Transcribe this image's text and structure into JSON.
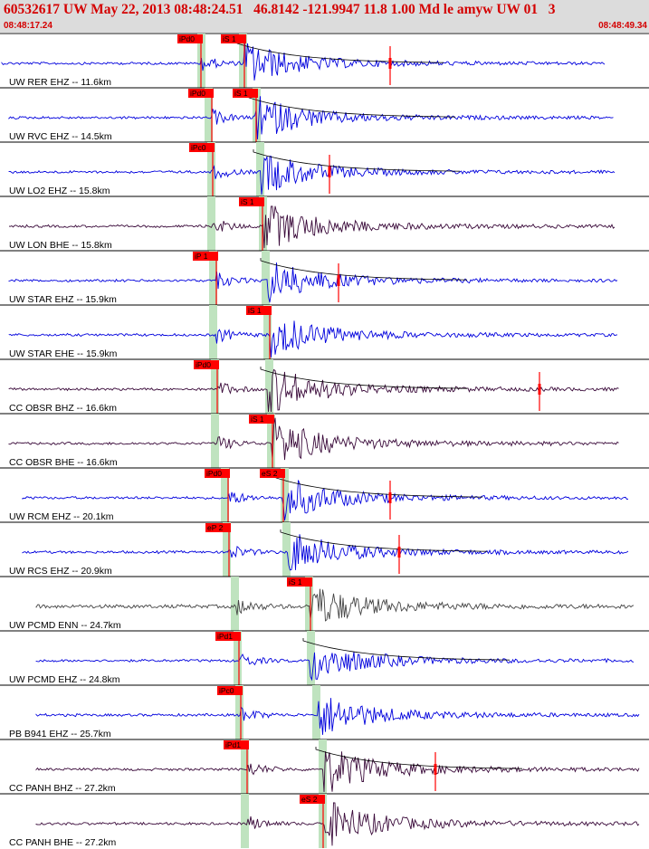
{
  "header": {
    "title": "60532617 UW May 22, 2013 08:48:24.51   46.8142 -121.9947 11.8 1.00 Md le amyw UW 01   3",
    "time_start": "08:48:17.24",
    "time_end": "08:48:49.34"
  },
  "colors": {
    "blue": "#0000dd",
    "dark": "#3a0a3a",
    "gray": "#444444",
    "green": "#bfe3bf",
    "red": "#ff0000"
  },
  "traces": [
    {
      "label": "UW RER EHZ -- 11.6km",
      "color": "blue",
      "p_pick": "iPd0",
      "s_pick": "iS 1",
      "coda": true,
      "red_mark": true
    },
    {
      "label": "UW RVC EHZ -- 14.5km",
      "color": "blue",
      "p_pick": "iPd0",
      "s_pick": "iS 1",
      "coda": true,
      "red_mark": false
    },
    {
      "label": "UW LO2 EHZ -- 15.8km",
      "color": "blue",
      "p_pick": "iPc0",
      "s_pick": "",
      "coda": true,
      "red_mark": true
    },
    {
      "label": "UW LON BHE -- 15.8km",
      "color": "dark",
      "p_pick": "",
      "s_pick": "iS 1",
      "coda": false,
      "red_mark": false
    },
    {
      "label": "UW STAR EHZ -- 15.9km",
      "color": "blue",
      "p_pick": "iP 1",
      "s_pick": "",
      "coda": true,
      "red_mark": true
    },
    {
      "label": "UW STAR EHE -- 15.9km",
      "color": "blue",
      "p_pick": "",
      "s_pick": "iS 1",
      "coda": false,
      "red_mark": false
    },
    {
      "label": "CC OBSR BHZ -- 16.6km",
      "color": "dark",
      "p_pick": "iPd0",
      "s_pick": "",
      "coda": true,
      "red_mark": true
    },
    {
      "label": "CC OBSR BHE -- 16.6km",
      "color": "dark",
      "p_pick": "",
      "s_pick": "iS 1",
      "coda": false,
      "red_mark": false
    },
    {
      "label": "UW RCM EHZ -- 20.1km",
      "color": "blue",
      "p_pick": "iPd0",
      "s_pick": "eS 2",
      "coda": true,
      "red_mark": true
    },
    {
      "label": "UW RCS EHZ -- 20.9km",
      "color": "blue",
      "p_pick": "eP 2",
      "s_pick": "",
      "coda": true,
      "red_mark": true
    },
    {
      "label": "UW PCMD ENN -- 24.7km",
      "color": "gray",
      "p_pick": "",
      "s_pick": "iS 1",
      "coda": false,
      "red_mark": false
    },
    {
      "label": "UW PCMD EHZ -- 24.8km",
      "color": "blue",
      "p_pick": "iPd1",
      "s_pick": "",
      "coda": true,
      "red_mark": false
    },
    {
      "label": "PB B941 EHZ -- 25.7km",
      "color": "blue",
      "p_pick": "iPc0",
      "s_pick": "",
      "coda": false,
      "red_mark": false
    },
    {
      "label": "CC PANH BHZ -- 27.2km",
      "color": "dark",
      "p_pick": "iPd1",
      "s_pick": "",
      "coda": true,
      "red_mark": true
    },
    {
      "label": "CC PANH BHE -- 27.2km",
      "color": "dark",
      "p_pick": "",
      "s_pick": "eS 2",
      "coda": false,
      "red_mark": false
    }
  ]
}
